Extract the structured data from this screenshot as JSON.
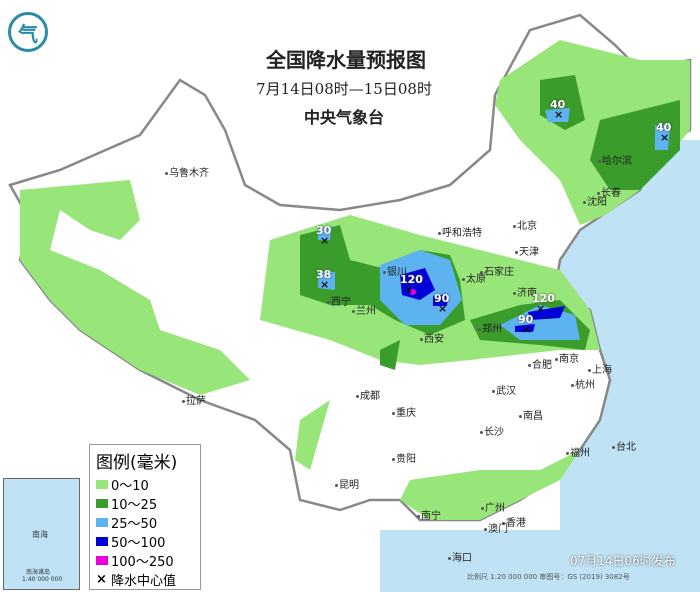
{
  "header": {
    "title": "全国降水量预报图",
    "period": "7月14日08时—15日08时",
    "issuer": "中央气象台"
  },
  "legend": {
    "title": "图例(毫米)",
    "items": [
      {
        "label": "0～10",
        "color": "#98e57a"
      },
      {
        "label": "10～25",
        "color": "#3a9c2a"
      },
      {
        "label": "25～50",
        "color": "#5db2f0"
      },
      {
        "label": "50～100",
        "color": "#0000d8"
      },
      {
        "label": "100～250",
        "color": "#ee00dd"
      }
    ],
    "center_label": "降水中心值"
  },
  "cities": [
    "乌鲁木齐",
    "哈尔滨",
    "长春",
    "沈阳",
    "北京",
    "天津",
    "呼和浩特",
    "石家庄",
    "太原",
    "银川",
    "西宁",
    "兰州",
    "济南",
    "郑州",
    "西安",
    "合肥",
    "南京",
    "上海",
    "杭州",
    "武汉",
    "成都",
    "重庆",
    "拉萨",
    "南昌",
    "长沙",
    "贵阳",
    "福州",
    "台北",
    "昆明",
    "南宁",
    "广州",
    "香港",
    "澳门",
    "海口"
  ],
  "centers": [
    "40",
    "40",
    "30",
    "38",
    "120",
    "90",
    "120",
    "90"
  ],
  "inset": {
    "label": "南海",
    "islands": "南海诸岛",
    "scale": "1:40 000 000"
  },
  "footer": {
    "published": "07月14日06时发布",
    "scale": "比例尺 1:20 000 000   审图号：GS (2019) 3082号"
  },
  "logo": "气"
}
